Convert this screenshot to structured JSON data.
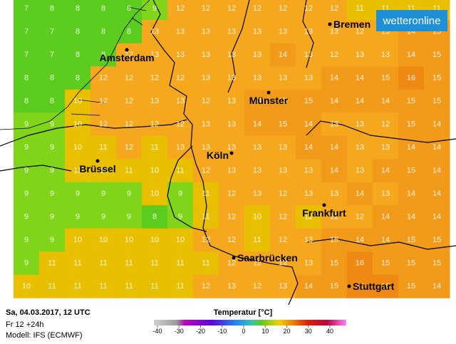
{
  "logo": "wetteronline",
  "grid": {
    "rows": [
      [
        7,
        8,
        8,
        8,
        8,
        9,
        12,
        12,
        12,
        12,
        12,
        12,
        12,
        11,
        11,
        11,
        11
      ],
      [
        7,
        7,
        8,
        8,
        8,
        13,
        13,
        13,
        13,
        13,
        13,
        13,
        13,
        12,
        13,
        14,
        15
      ],
      [
        7,
        7,
        8,
        8,
        12,
        13,
        13,
        13,
        13,
        13,
        14,
        13,
        12,
        13,
        13,
        14,
        15
      ],
      [
        8,
        8,
        8,
        12,
        12,
        12,
        12,
        13,
        13,
        13,
        13,
        13,
        14,
        14,
        15,
        16,
        15
      ],
      [
        8,
        8,
        10,
        12,
        12,
        13,
        13,
        12,
        13,
        14,
        15,
        15,
        14,
        14,
        14,
        15,
        15
      ],
      [
        9,
        9,
        10,
        12,
        12,
        12,
        12,
        13,
        13,
        14,
        15,
        14,
        13,
        13,
        12,
        15,
        14
      ],
      [
        9,
        9,
        10,
        11,
        12,
        11,
        13,
        13,
        13,
        13,
        13,
        14,
        14,
        13,
        13,
        14,
        14
      ],
      [
        9,
        9,
        11,
        11,
        11,
        10,
        11,
        12,
        13,
        13,
        13,
        13,
        14,
        13,
        14,
        15,
        14
      ],
      [
        9,
        9,
        9,
        9,
        9,
        10,
        9,
        11,
        12,
        13,
        12,
        13,
        13,
        14,
        13,
        14,
        14
      ],
      [
        9,
        9,
        9,
        9,
        9,
        8,
        9,
        11,
        12,
        10,
        12,
        11,
        12,
        12,
        14,
        14,
        14
      ],
      [
        9,
        9,
        10,
        10,
        10,
        10,
        10,
        12,
        12,
        11,
        12,
        13,
        15,
        14,
        14,
        15,
        15
      ],
      [
        9,
        11,
        11,
        11,
        11,
        11,
        11,
        11,
        12,
        12,
        12,
        13,
        15,
        16,
        15,
        15,
        15
      ],
      [
        10,
        11,
        11,
        11,
        11,
        11,
        11,
        12,
        13,
        12,
        13,
        14,
        15,
        16,
        16,
        15,
        14
      ]
    ]
  },
  "cities": [
    "Bremen",
    "Amsterdam",
    "Münster",
    "Köln",
    "Brüssel",
    "Frankfurt",
    "Saarbrücken",
    "Stuttgart"
  ],
  "footer": {
    "date": "Sa, 04.03.2017, 12 UTC",
    "run": "Fr 12 +24h",
    "model": "Modell: IFS (ECMWF)"
  },
  "legend": {
    "title": "Temperatur [°C]",
    "ticks": [
      -40,
      -30,
      -20,
      -10,
      0,
      10,
      20,
      30,
      40
    ]
  }
}
